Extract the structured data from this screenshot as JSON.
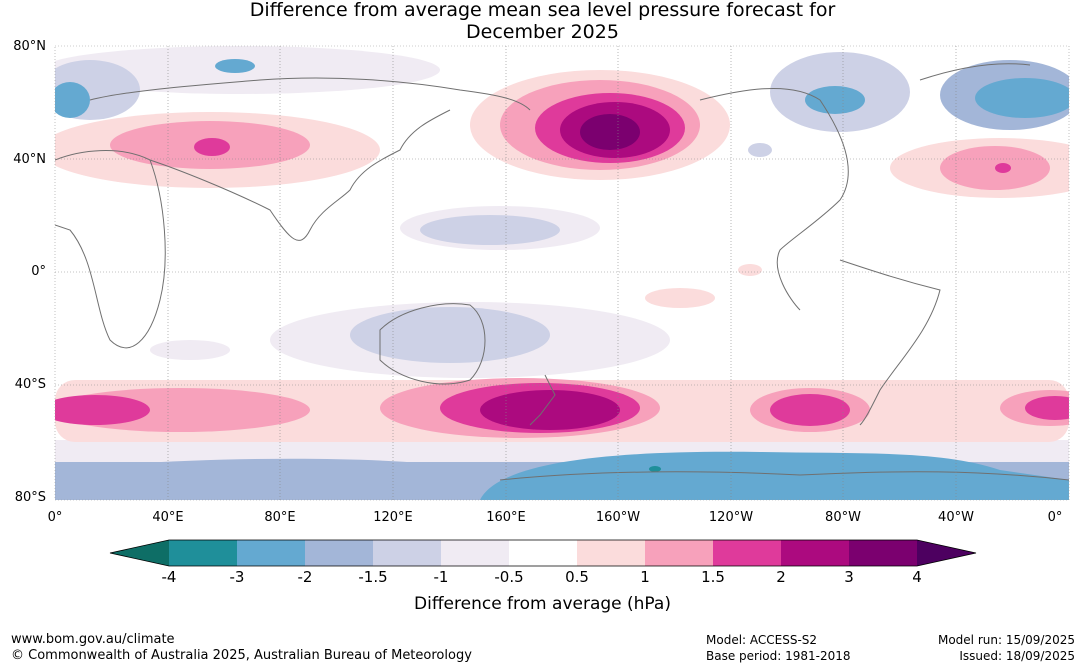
{
  "title_line1": "Difference from average mean sea level pressure forecast for",
  "title_line2": "December 2025",
  "lat_labels": [
    "80°N",
    "40°N",
    "0°",
    "40°S",
    "80°S"
  ],
  "lon_labels": [
    "0°",
    "40°E",
    "80°E",
    "120°E",
    "160°E",
    "160°W",
    "120°W",
    "80°W",
    "40°W",
    "0°"
  ],
  "colorbar": {
    "title": "Difference from average (hPa)",
    "ticks": [
      "-4",
      "-3",
      "-2",
      "-1.5",
      "-1",
      "-0.5",
      "0.5",
      "1",
      "1.5",
      "2",
      "3",
      "4"
    ],
    "colors": [
      "#0e6e66",
      "#1f8f9a",
      "#64a9d1",
      "#a3b6d8",
      "#cdd1e6",
      "#f0ebf3",
      "#ffffff",
      "#fbdcdc",
      "#f7a1bb",
      "#df3a9b",
      "#ac0a7f",
      "#7b006f",
      "#4d0060"
    ]
  },
  "footer": {
    "url": "www.bom.gov.au/climate",
    "copyright": "© Commonwealth of Australia 2025, Australian Bureau of Meteorology",
    "model": "Model: ACCESS-S2",
    "base_period": "Base period: 1981-2018",
    "model_run": "Model run: 15/09/2025",
    "issued": "Issued: 18/09/2025"
  }
}
